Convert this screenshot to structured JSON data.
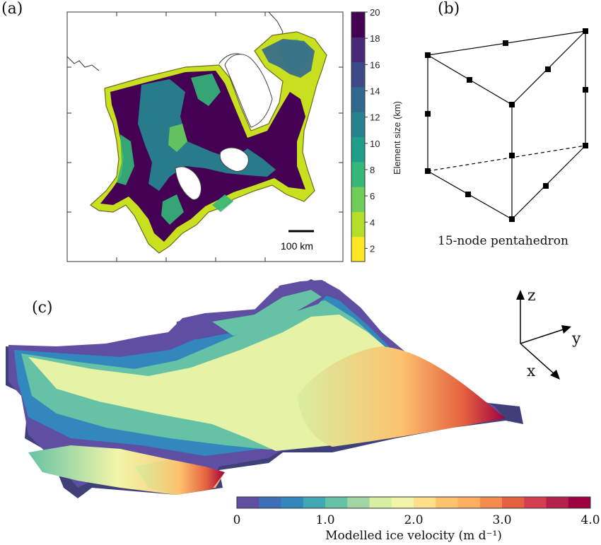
{
  "panels": {
    "a": {
      "label": "(a)",
      "scale_bar": "100 km",
      "colorbar": {
        "title": "Element size (km)",
        "ticks": [
          "20",
          "18",
          "16",
          "14",
          "12",
          "10",
          "8",
          "6",
          "4",
          "2"
        ],
        "range": [
          1,
          20
        ],
        "colors": [
          "#fde725",
          "#b5de2b",
          "#6ece58",
          "#35b779",
          "#1f9e89",
          "#26828e",
          "#31688e",
          "#3e4989",
          "#482878",
          "#440154"
        ]
      }
    },
    "b": {
      "label": "(b)",
      "caption": "15-node pentahedron"
    },
    "c": {
      "label": "(c)",
      "axes": {
        "z": "z",
        "y": "y",
        "x": "x"
      },
      "colorbar": {
        "title": "Modelled ice velocity (m d⁻¹)",
        "ticks": [
          "0",
          "1.0",
          "2.0",
          "3.0",
          "4.0"
        ],
        "range": [
          0,
          4
        ],
        "colors": [
          "#5e4fa2",
          "#3c6fb5",
          "#3288bd",
          "#40a8b3",
          "#66c2a5",
          "#9fd6a4",
          "#d8eea0",
          "#f2f5a8",
          "#fee08b",
          "#fdc26e",
          "#fdae61",
          "#f48c4f",
          "#e4603f",
          "#d53e4f",
          "#b5204d",
          "#9e0142"
        ]
      }
    }
  }
}
